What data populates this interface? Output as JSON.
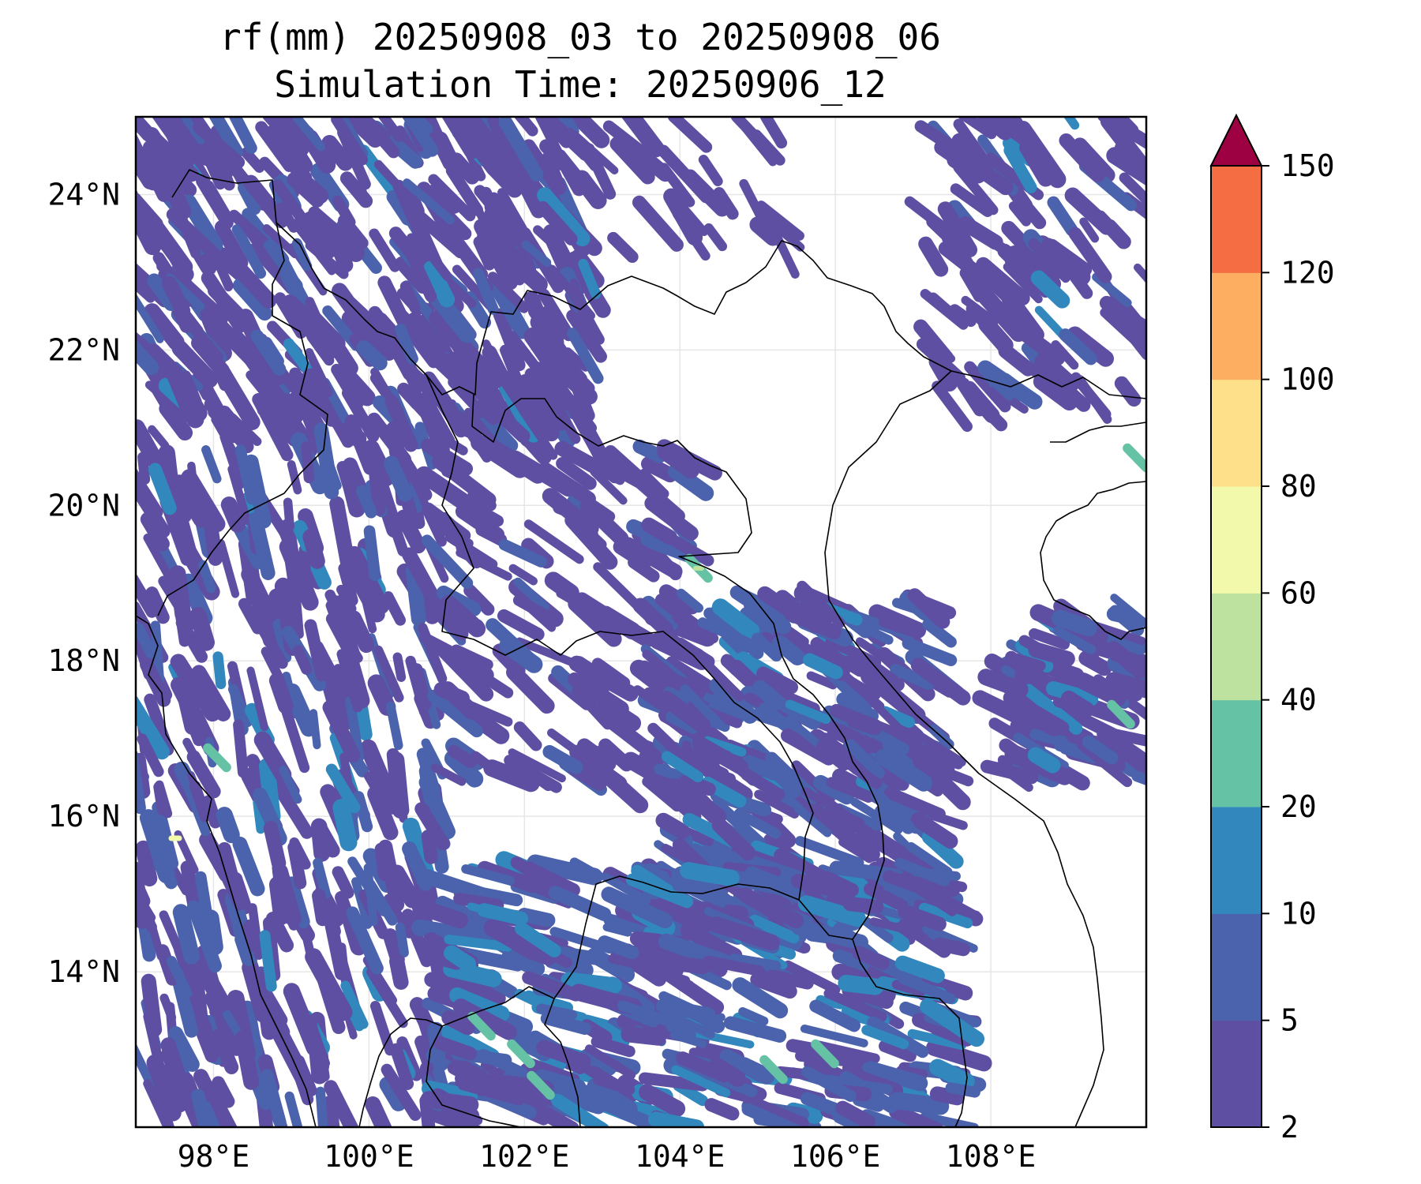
{
  "title": {
    "line1": "rf(mm) 20250908_03 to 20250908_06",
    "line2": "Simulation Time: 20250906_12"
  },
  "map": {
    "lon_range": [
      97,
      110
    ],
    "lat_range": [
      12,
      25
    ],
    "lon_ticks": [
      {
        "value": 98,
        "label": "98°E"
      },
      {
        "value": 100,
        "label": "100°E"
      },
      {
        "value": 102,
        "label": "102°E"
      },
      {
        "value": 104,
        "label": "104°E"
      },
      {
        "value": 106,
        "label": "106°E"
      },
      {
        "value": 108,
        "label": "108°E"
      }
    ],
    "lat_ticks": [
      {
        "value": 24,
        "label": "24°N"
      },
      {
        "value": 22,
        "label": "22°N"
      },
      {
        "value": 20,
        "label": "20°N"
      },
      {
        "value": 18,
        "label": "18°N"
      },
      {
        "value": 16,
        "label": "16°N"
      },
      {
        "value": 14,
        "label": "14°N"
      }
    ],
    "grid": true
  },
  "colorbar": {
    "levels": [
      "2",
      "5",
      "10",
      "20",
      "40",
      "60",
      "80",
      "100",
      "120",
      "150"
    ],
    "colors": [
      "#5e4fa2",
      "#4b62ac",
      "#3288bd",
      "#66c2a5",
      "#bde2a0",
      "#f2f9ab",
      "#fee08b",
      "#fdae61",
      "#f46d43",
      "#d53e4f"
    ],
    "extend_color": "#9e0142",
    "extend": "max"
  }
}
